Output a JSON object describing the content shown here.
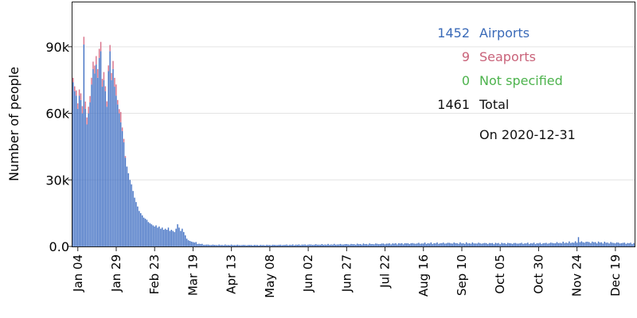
{
  "chart_data": {
    "type": "bar",
    "stacked": true,
    "title": "",
    "xlabel": "",
    "ylabel": "Number of people",
    "ylim": [
      0,
      110000
    ],
    "y_ticks": [
      0,
      30000,
      60000,
      90000
    ],
    "y_tick_labels": [
      "0.0",
      "30k",
      "60k",
      "90k"
    ],
    "x_start_date": "2020-01-01",
    "x_end_date": "2020-12-31",
    "x_tick_labels": [
      "Jan 04",
      "Jan 29",
      "Feb 23",
      "Mar 19",
      "Apr 13",
      "May 08",
      "Jun 02",
      "Jun 27",
      "Jul 22",
      "Aug 16",
      "Sep 10",
      "Oct 05",
      "Oct 30",
      "Nov 24",
      "Dec 19"
    ],
    "x_tick_dates": [
      "2020-01-04",
      "2020-01-29",
      "2020-02-23",
      "2020-03-19",
      "2020-04-13",
      "2020-05-08",
      "2020-06-02",
      "2020-06-27",
      "2020-07-22",
      "2020-08-16",
      "2020-09-10",
      "2020-10-05",
      "2020-10-30",
      "2020-11-24",
      "2020-12-19"
    ],
    "grid": true,
    "legend_position": "top-right",
    "series": [
      {
        "name": "Airports",
        "color": "#4472c4",
        "anchors": [
          [
            "2020-01-01",
            74000
          ],
          [
            "2020-01-02",
            70000
          ],
          [
            "2020-01-03",
            68000
          ],
          [
            "2020-01-04",
            62000
          ],
          [
            "2020-01-05",
            68000
          ],
          [
            "2020-01-06",
            66000
          ],
          [
            "2020-01-07",
            60000
          ],
          [
            "2020-01-08",
            91000
          ],
          [
            "2020-01-09",
            62000
          ],
          [
            "2020-01-10",
            55000
          ],
          [
            "2020-01-11",
            60000
          ],
          [
            "2020-01-12",
            65000
          ],
          [
            "2020-01-13",
            73000
          ],
          [
            "2020-01-14",
            80000
          ],
          [
            "2020-01-15",
            78000
          ],
          [
            "2020-01-16",
            82000
          ],
          [
            "2020-01-17",
            76000
          ],
          [
            "2020-01-18",
            85000
          ],
          [
            "2020-01-19",
            88000
          ],
          [
            "2020-01-20",
            72000
          ],
          [
            "2020-01-21",
            75000
          ],
          [
            "2020-01-22",
            70000
          ],
          [
            "2020-01-23",
            63000
          ],
          [
            "2020-01-24",
            79000
          ],
          [
            "2020-01-25",
            88000
          ],
          [
            "2020-01-26",
            75000
          ],
          [
            "2020-01-27",
            80000
          ],
          [
            "2020-01-28",
            72000
          ],
          [
            "2020-01-29",
            68000
          ],
          [
            "2020-01-30",
            64000
          ],
          [
            "2020-01-31",
            60000
          ],
          [
            "2020-02-01",
            56000
          ],
          [
            "2020-02-02",
            52000
          ],
          [
            "2020-02-03",
            47000
          ],
          [
            "2020-02-04",
            40000
          ],
          [
            "2020-02-05",
            36000
          ],
          [
            "2020-02-06",
            33000
          ],
          [
            "2020-02-07",
            30000
          ],
          [
            "2020-02-08",
            28000
          ],
          [
            "2020-02-09",
            25000
          ],
          [
            "2020-02-10",
            22000
          ],
          [
            "2020-02-11",
            20000
          ],
          [
            "2020-02-12",
            18000
          ],
          [
            "2020-02-13",
            16000
          ],
          [
            "2020-02-14",
            15000
          ],
          [
            "2020-02-15",
            14000
          ],
          [
            "2020-02-16",
            13000
          ],
          [
            "2020-02-17",
            12500
          ],
          [
            "2020-02-18",
            12000
          ],
          [
            "2020-02-19",
            11000
          ],
          [
            "2020-02-20",
            10500
          ],
          [
            "2020-02-21",
            10000
          ],
          [
            "2020-02-22",
            9500
          ],
          [
            "2020-02-23",
            9000
          ],
          [
            "2020-02-24",
            9500
          ],
          [
            "2020-02-25",
            8500
          ],
          [
            "2020-02-26",
            9000
          ],
          [
            "2020-02-27",
            8000
          ],
          [
            "2020-02-28",
            8500
          ],
          [
            "2020-02-29",
            7500
          ],
          [
            "2020-03-01",
            8000
          ],
          [
            "2020-03-02",
            7500
          ],
          [
            "2020-03-03",
            8500
          ],
          [
            "2020-03-04",
            7000
          ],
          [
            "2020-03-05",
            7500
          ],
          [
            "2020-03-06",
            7000
          ],
          [
            "2020-03-07",
            6500
          ],
          [
            "2020-03-08",
            8000
          ],
          [
            "2020-03-09",
            10000
          ],
          [
            "2020-03-10",
            8500
          ],
          [
            "2020-03-11",
            7000
          ],
          [
            "2020-03-12",
            8000
          ],
          [
            "2020-03-13",
            6500
          ],
          [
            "2020-03-14",
            5000
          ],
          [
            "2020-03-15",
            3500
          ],
          [
            "2020-03-16",
            2800
          ],
          [
            "2020-03-17",
            2500
          ],
          [
            "2020-03-18",
            2200
          ],
          [
            "2020-03-19",
            2000
          ],
          [
            "2020-03-20",
            1800
          ],
          [
            "2020-03-21",
            1600
          ],
          [
            "2020-03-22",
            1400
          ],
          [
            "2020-03-23",
            1200
          ],
          [
            "2020-03-24",
            1100
          ],
          [
            "2020-03-25",
            1000
          ],
          [
            "2020-03-26",
            900
          ],
          [
            "2020-03-27",
            800
          ],
          [
            "2020-04-01",
            700
          ],
          [
            "2020-05-01",
            600
          ],
          [
            "2020-06-01",
            800
          ],
          [
            "2020-07-01",
            1000
          ],
          [
            "2020-08-01",
            1300
          ],
          [
            "2020-09-01",
            1500
          ],
          [
            "2020-10-01",
            1400
          ],
          [
            "2020-11-01",
            1400
          ],
          [
            "2020-11-20",
            1800
          ],
          [
            "2020-11-28",
            2000
          ],
          [
            "2020-12-31",
            1400
          ]
        ],
        "spikes": [
          [
            "2020-11-25",
            4200
          ]
        ]
      },
      {
        "name": "Seaports",
        "color": "#d9728a",
        "anchors": [
          [
            "2020-01-01",
            2000
          ],
          [
            "2020-01-04",
            2500
          ],
          [
            "2020-01-08",
            3500
          ],
          [
            "2020-01-12",
            2800
          ],
          [
            "2020-01-16",
            3800
          ],
          [
            "2020-01-19",
            4200
          ],
          [
            "2020-01-22",
            2200
          ],
          [
            "2020-01-25",
            2800
          ],
          [
            "2020-01-28",
            4000
          ],
          [
            "2020-01-30",
            2000
          ],
          [
            "2020-02-03",
            1500
          ],
          [
            "2020-02-05",
            0
          ],
          [
            "2020-12-31",
            0
          ]
        ],
        "spikes": [
          [
            "2020-01-29",
            5000
          ],
          [
            "2020-02-01",
            4600
          ],
          [
            "2020-01-21",
            3600
          ]
        ]
      },
      {
        "name": "Not specified",
        "color": "#4caf50",
        "anchors": [
          [
            "2020-01-01",
            0
          ],
          [
            "2020-12-31",
            0
          ]
        ]
      }
    ]
  },
  "legend": {
    "items": [
      {
        "value": "1452",
        "label": "Airports",
        "color": "#3a6ab8"
      },
      {
        "value": "9",
        "label": "Seaports",
        "color": "#c9637a"
      },
      {
        "value": "0",
        "label": "Not specified",
        "color": "#4db34d"
      },
      {
        "value": "1461",
        "label": "Total",
        "color": "#111111"
      }
    ],
    "date_text": "On 2020-12-31"
  }
}
